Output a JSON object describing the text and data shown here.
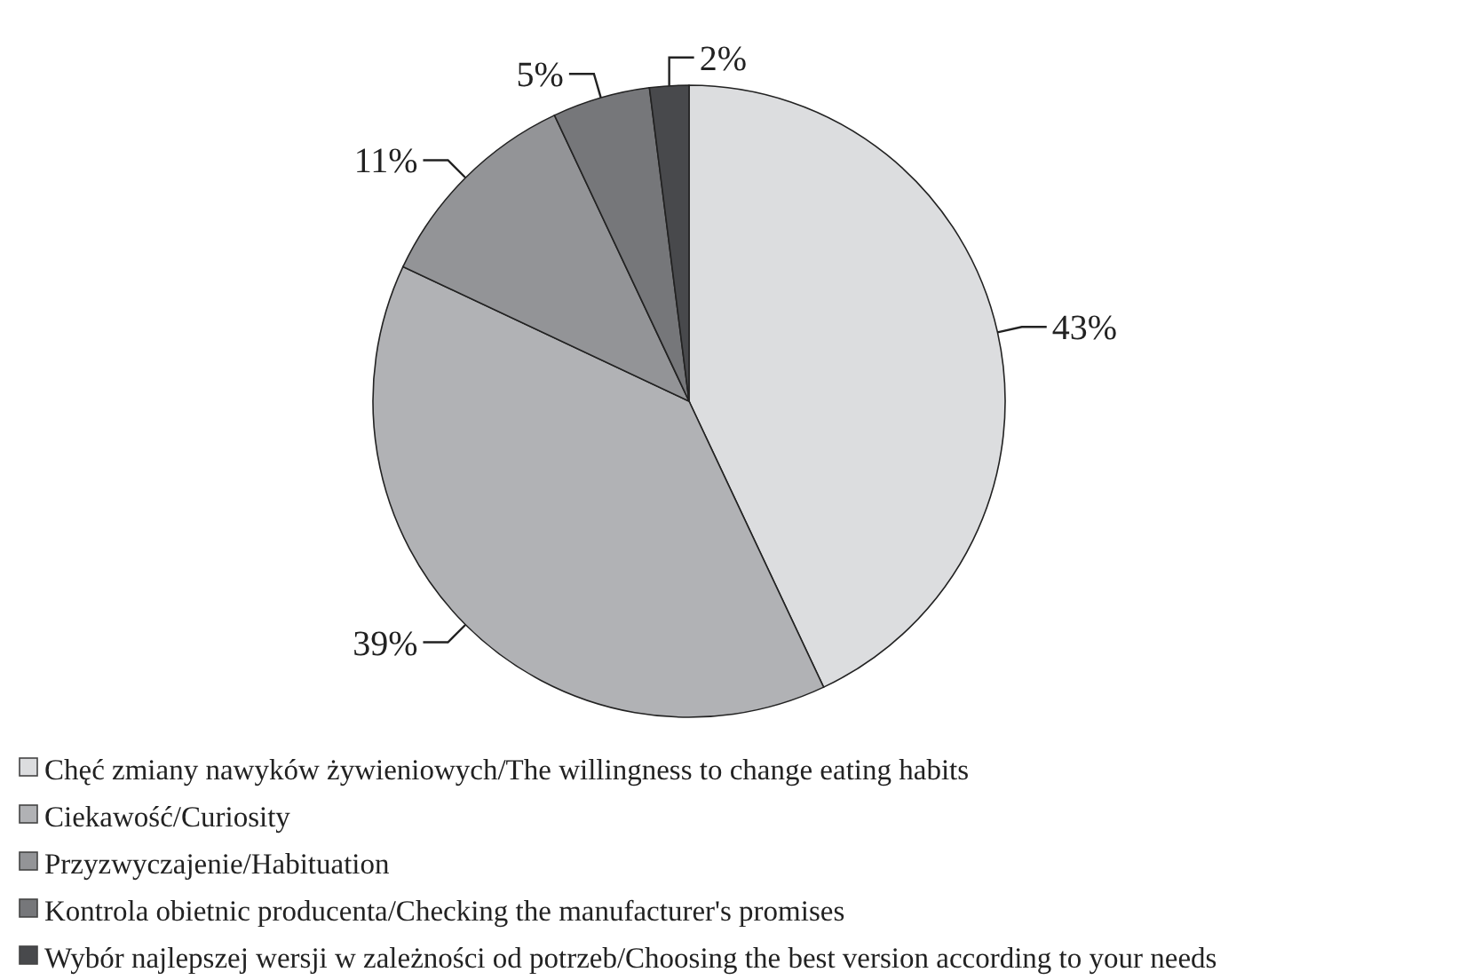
{
  "chart_data": {
    "type": "pie",
    "categories": [
      "Chęć zmiany nawyków żywieniowych/The willingness to change eating habits",
      "Ciekawość/Curiosity",
      "Przyzwyczajenie/Habituation",
      "Kontrola obietnic producenta/Checking the manufacturer's promises",
      "Wybór najlepszej wersji w zależności od potrzeb/Choosing the best version according to your needs"
    ],
    "values": [
      43,
      39,
      11,
      5,
      2
    ],
    "colors": [
      "#dcdddf",
      "#b1b2b5",
      "#939497",
      "#76777a",
      "#48494c"
    ],
    "value_labels": [
      "43%",
      "39%",
      "11%",
      "5%",
      "2%"
    ],
    "legend": "bottom"
  }
}
